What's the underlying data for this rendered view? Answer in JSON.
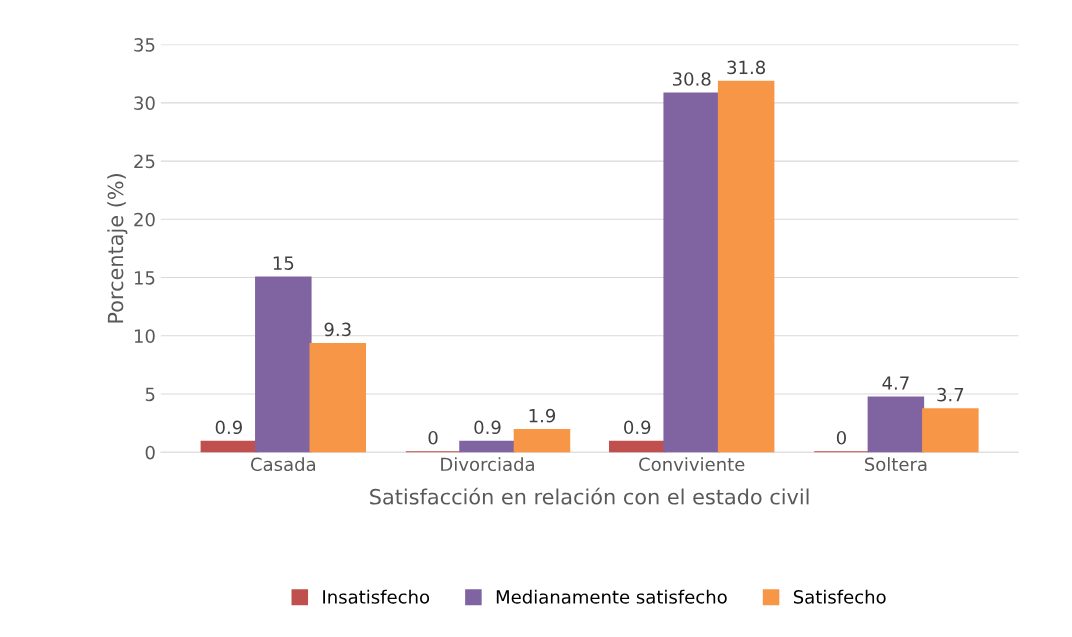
{
  "chart_data": {
    "type": "bar",
    "xlabel": "Satisfacción en relación con el estado civil",
    "ylabel": "Porcentaje (%)",
    "categories": [
      "Casada",
      "Divorciada",
      "Conviviente",
      "Soltera"
    ],
    "series": [
      {
        "name": "Insatisfecho",
        "color": "#c0504d",
        "values": [
          0.9,
          0,
          0.9,
          0
        ]
      },
      {
        "name": "Medianamente satisfecho",
        "color": "#8064a2",
        "values": [
          15,
          0.9,
          30.8,
          4.7
        ]
      },
      {
        "name": "Satisfecho",
        "color": "#f79646",
        "values": [
          9.3,
          1.9,
          31.8,
          3.7
        ]
      }
    ],
    "ylim": [
      0,
      35
    ],
    "yticks": [
      0,
      5,
      10,
      15,
      20,
      25,
      30,
      35
    ],
    "grid": "y",
    "legend": "bottom",
    "data_labels": true
  }
}
